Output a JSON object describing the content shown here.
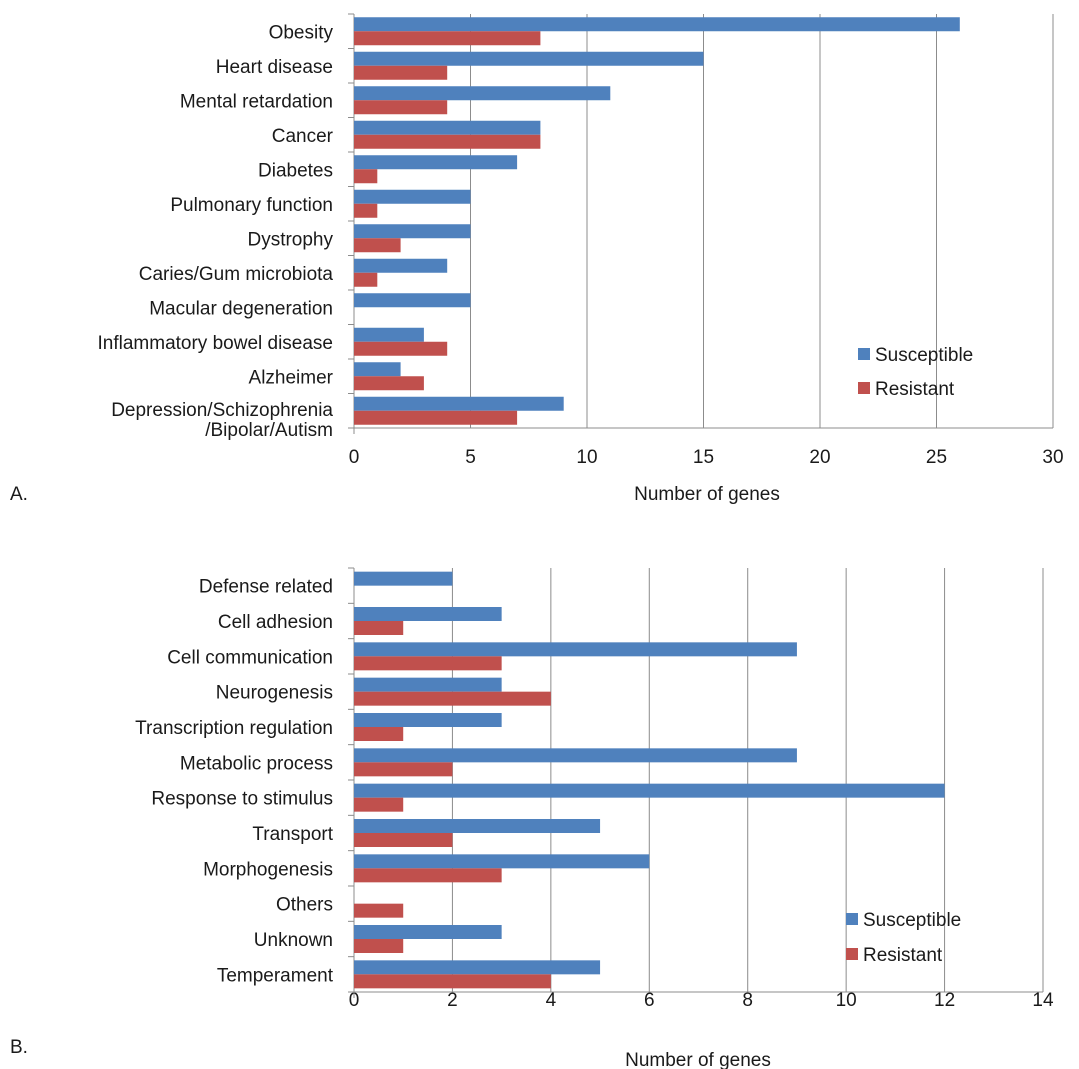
{
  "chart_data": [
    {
      "type": "bar",
      "orientation": "horizontal",
      "panel_label": "A.",
      "xlabel": "Number of genes",
      "xlim": [
        0,
        30
      ],
      "xticks": [
        "0",
        "5",
        "10",
        "15",
        "20",
        "25",
        "30"
      ],
      "grid": "vertical",
      "legend_position": "bottom-right",
      "categories": [
        "Obesity",
        "Heart disease",
        "Mental retardation",
        "Cancer",
        "Diabetes",
        "Pulmonary function",
        "Dystrophy",
        "Caries/Gum microbiota",
        "Macular degeneration",
        "Inflammatory bowel disease",
        "Alzheimer",
        "Depression/Schizophrenia\n/Bipolar/Autism"
      ],
      "series": [
        {
          "name": "Susceptible",
          "color": "#4f81bd",
          "values": [
            26,
            15,
            11,
            8,
            7,
            5,
            5,
            4,
            5,
            3,
            2,
            9
          ]
        },
        {
          "name": "Resistant",
          "color": "#c0504d",
          "values": [
            8,
            4,
            4,
            8,
            1,
            1,
            2,
            1,
            0,
            4,
            3,
            7
          ]
        }
      ]
    },
    {
      "type": "bar",
      "orientation": "horizontal",
      "panel_label": "B.",
      "xlabel": "Number of genes",
      "xlim": [
        0,
        14
      ],
      "xticks": [
        "0",
        "2",
        "4",
        "6",
        "8",
        "10",
        "12",
        "14"
      ],
      "grid": "vertical",
      "legend_position": "bottom-right",
      "categories": [
        "Defense related",
        "Cell adhesion",
        "Cell communication",
        "Neurogenesis",
        "Transcription regulation",
        "Metabolic process",
        "Response to stimulus",
        "Transport",
        "Morphogenesis",
        "Others",
        "Unknown",
        "Temperament"
      ],
      "series": [
        {
          "name": "Susceptible",
          "color": "#4f81bd",
          "values": [
            2,
            3,
            9,
            3,
            3,
            9,
            12,
            5,
            6,
            0,
            3,
            5
          ]
        },
        {
          "name": "Resistant",
          "color": "#c0504d",
          "values": [
            0,
            1,
            3,
            4,
            1,
            2,
            1,
            2,
            3,
            1,
            1,
            4
          ]
        }
      ]
    }
  ]
}
